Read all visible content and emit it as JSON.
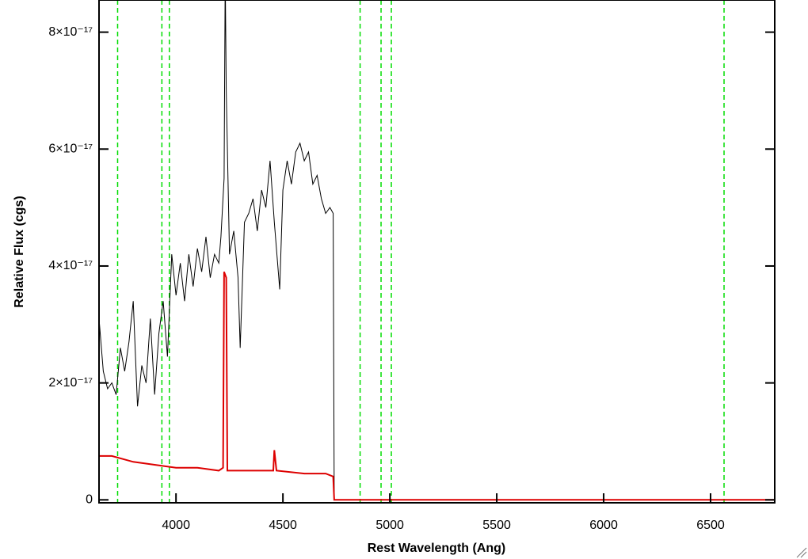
{
  "chart_data": {
    "type": "line",
    "xlabel": "Rest Wavelength (Ang)",
    "ylabel": "Relative Flux (cgs)",
    "xlim": [
      3640,
      6800
    ],
    "ylim": [
      -5e-19,
      8.55e-17
    ],
    "xticks": [
      4000,
      4500,
      5000,
      5500,
      6000,
      6500
    ],
    "yticks": [
      0,
      {
        "value": 2e-17,
        "label": "2×10⁻¹⁷"
      },
      {
        "value": 4e-17,
        "label": "4×10⁻¹⁷"
      },
      {
        "value": 6e-17,
        "label": "6×10⁻¹⁷"
      },
      {
        "value": 8e-17,
        "label": "8×10⁻¹⁷"
      }
    ],
    "vlines": {
      "color": "#00dd00",
      "x": [
        3727,
        3934,
        3969,
        4861,
        4959,
        5007,
        6563
      ]
    },
    "series": [
      {
        "color": "#000000",
        "x": [
          3640,
          3660,
          3680,
          3700,
          3720,
          3740,
          3760,
          3780,
          3800,
          3820,
          3840,
          3860,
          3880,
          3900,
          3920,
          3940,
          3960,
          3980,
          4000,
          4020,
          4040,
          4060,
          4080,
          4100,
          4120,
          4140,
          4160,
          4180,
          4200,
          4210,
          4225,
          4230,
          4235,
          4250,
          4270,
          4290,
          4300,
          4320,
          4340,
          4360,
          4380,
          4400,
          4420,
          4440,
          4460,
          4485,
          4500,
          4520,
          4540,
          4560,
          4580,
          4600,
          4620,
          4640,
          4660,
          4680,
          4700,
          4720,
          4735,
          4740,
          6800
        ],
        "values": [
          3.1e-17,
          2.2e-17,
          1.9e-17,
          2e-17,
          1.8e-17,
          2.6e-17,
          2.2e-17,
          2.7e-17,
          3.4e-17,
          1.6e-17,
          2.3e-17,
          2e-17,
          3.1e-17,
          1.8e-17,
          2.85e-17,
          3.4e-17,
          2.45e-17,
          4.2e-17,
          3.5e-17,
          4.05e-17,
          3.4e-17,
          4.2e-17,
          3.65e-17,
          4.3e-17,
          3.9e-17,
          4.5e-17,
          3.8e-17,
          4.2e-17,
          4.05e-17,
          4.5e-17,
          5.5e-17,
          9e-17,
          7e-17,
          4.2e-17,
          4.6e-17,
          3.8e-17,
          2.6e-17,
          4.75e-17,
          4.9e-17,
          5.15e-17,
          4.6e-17,
          5.3e-17,
          5e-17,
          5.8e-17,
          4.75e-17,
          3.6e-17,
          5.3e-17,
          5.8e-17,
          5.4e-17,
          5.95e-17,
          6.1e-17,
          5.8e-17,
          5.95e-17,
          5.4e-17,
          5.55e-17,
          5.15e-17,
          4.9e-17,
          5e-17,
          4.9e-17,
          0,
          0
        ]
      },
      {
        "color": "#dd0000",
        "x": [
          3640,
          3700,
          3800,
          3900,
          4000,
          4100,
          4200,
          4220,
          4225,
          4235,
          4240,
          4300,
          4400,
          4455,
          4460,
          4470,
          4600,
          4700,
          4735,
          4740,
          6800
        ],
        "values": [
          7.5e-18,
          7.5e-18,
          6.5e-18,
          6e-18,
          5.5e-18,
          5.5e-18,
          5e-18,
          5.5e-18,
          3.9e-17,
          3.8e-17,
          5e-18,
          5e-18,
          5e-18,
          5e-18,
          8.5e-18,
          5e-18,
          4.5e-18,
          4.5e-18,
          4e-18,
          0,
          0
        ]
      }
    ]
  }
}
